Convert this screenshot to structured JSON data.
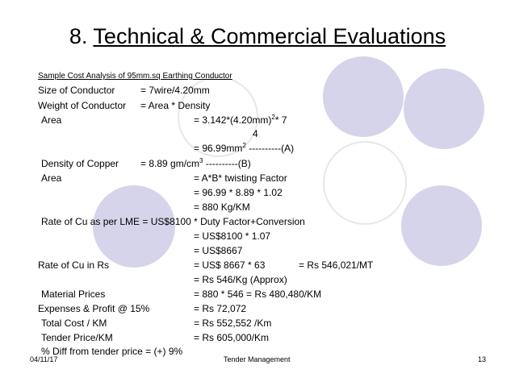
{
  "slide": {
    "title_number": "8.",
    "title_text": "Technical & Commercial Evaluations",
    "subtitle": "Sample Cost Analysis of 95mm.sq Earthing Conductor",
    "lines": {
      "size_label": "Size of Conductor",
      "size_value": "= 7wire/4.20mm",
      "weight_label": "Weight of Conductor",
      "weight_value": "= Area * Density",
      "area_label": "Area",
      "area_formula_pre": "=  3.142*(4.20mm)",
      "area_formula_sup": "2",
      "area_formula_post": "* 7",
      "area_divisor": "4",
      "area_result_pre": "= 96.99mm",
      "area_result_sup": "2",
      "area_result_post": "  ----------(A)",
      "density_label": "Density of Copper",
      "density_value_pre": "= 8.89 gm/cm",
      "density_value_sup": "3",
      "density_value_post": " ----------(B)",
      "area2_label": "Area",
      "area2_formula": "= A*B* twisting Factor",
      "area2_calc": "= 96.99 * 8.89 * 1.02",
      "area2_result": "= 880 Kg/KM",
      "rate_lme": "Rate of Cu as per LME = US$8100 * Duty Factor+Conversion",
      "rate_lme_calc": "= US$8100 * 1.07",
      "rate_lme_result": "= US$8667",
      "rate_rs_label": "Rate of Cu in Rs",
      "rate_rs_calc": "= US$ 8667 * 63",
      "rate_rs_result": "= Rs 546,021/MT",
      "rate_rs_kg": "= Rs 546/Kg (Approx)",
      "material_label": "Material Prices",
      "material_value": "= 880 * 546 = Rs 480,480/KM",
      "expenses_label": "Expenses & Profit @ 15%",
      "expenses_value": "= Rs 72,072",
      "total_label": "Total Cost / KM",
      "total_value": "= Rs 552,552 /Km",
      "tender_label": "Tender Price/KM",
      "tender_value": "= Rs 605,000/Km",
      "diff": "% Diff from tender price = (+) 9%"
    },
    "footer": {
      "date": "04/11/17",
      "center": "Tender Management",
      "page": "13"
    },
    "colors": {
      "circle_fill": "#d5d4ea",
      "circle_outline": "#e6e6ee"
    }
  }
}
